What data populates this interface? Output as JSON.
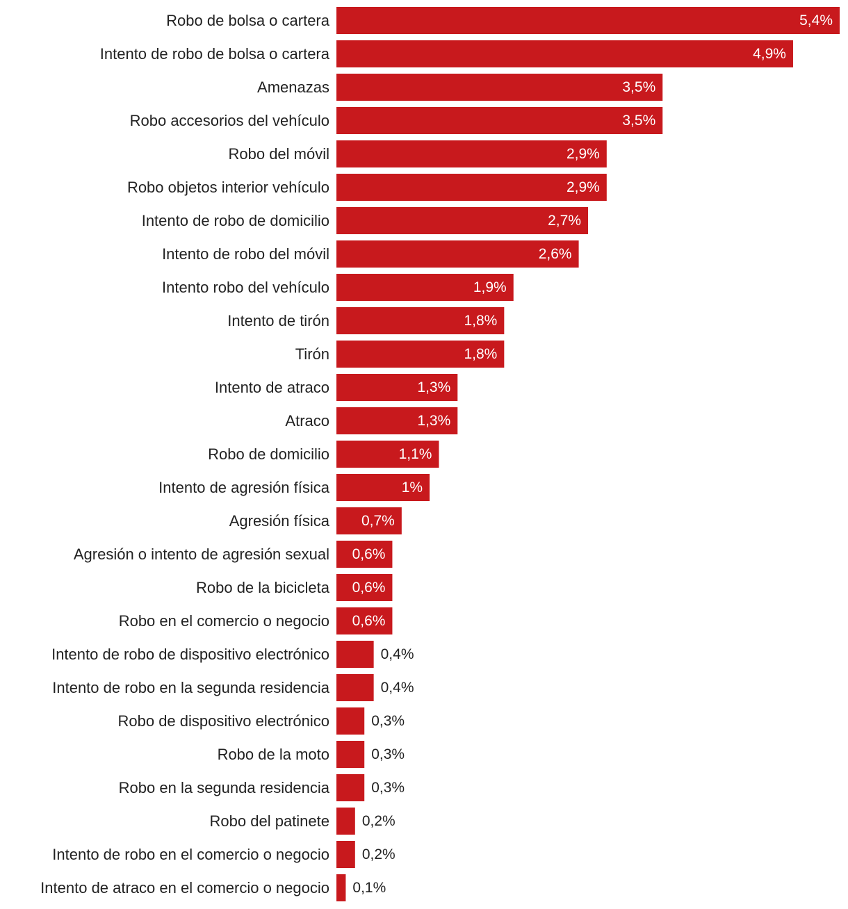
{
  "chart_data": {
    "type": "bar",
    "orientation": "horizontal",
    "title": "",
    "xlabel": "",
    "ylabel": "",
    "bar_color": "#c8191d",
    "inside_label_color": "#ffffff",
    "outside_label_color": "#222222",
    "categories": [
      "Robo de bolsa o cartera",
      "Intento de robo de bolsa o cartera",
      "Amenazas",
      "Robo accesorios del vehículo",
      "Robo del móvil",
      "Robo objetos interior vehículo",
      "Intento de robo de domicilio",
      "Intento de robo del móvil",
      "Intento robo del vehículo",
      "Intento de tirón",
      "Tirón",
      "Intento de atraco",
      "Atraco",
      "Robo de domicilio",
      "Intento de agresión física",
      "Agresión física",
      "Agresión o intento de agresión sexual",
      "Robo de la bicicleta",
      "Robo en el comercio o negocio",
      "Intento de robo de dispositivo electrónico",
      "Intento de robo en la segunda residencia",
      "Robo de dispositivo electrónico",
      "Robo de la moto",
      "Robo en la segunda residencia",
      "Robo del patinete",
      "Intento de robo en el comercio o negocio",
      "Intento de atraco en el comercio o negocio"
    ],
    "values": [
      5.4,
      4.9,
      3.5,
      3.5,
      2.9,
      2.9,
      2.7,
      2.6,
      1.9,
      1.8,
      1.8,
      1.3,
      1.3,
      1.1,
      1.0,
      0.7,
      0.6,
      0.6,
      0.6,
      0.4,
      0.4,
      0.3,
      0.3,
      0.3,
      0.2,
      0.2,
      0.1
    ],
    "value_labels": [
      "5,4%",
      "4,9%",
      "3,5%",
      "3,5%",
      "2,9%",
      "2,9%",
      "2,7%",
      "2,6%",
      "1,9%",
      "1,8%",
      "1,8%",
      "1,3%",
      "1,3%",
      "1,1%",
      "1%",
      "0,7%",
      "0,6%",
      "0,6%",
      "0,6%",
      "0,4%",
      "0,4%",
      "0,3%",
      "0,3%",
      "0,3%",
      "0,2%",
      "0,2%",
      "0,1%"
    ],
    "xlim": [
      0,
      5.4
    ],
    "grid": false,
    "legend": "none"
  }
}
